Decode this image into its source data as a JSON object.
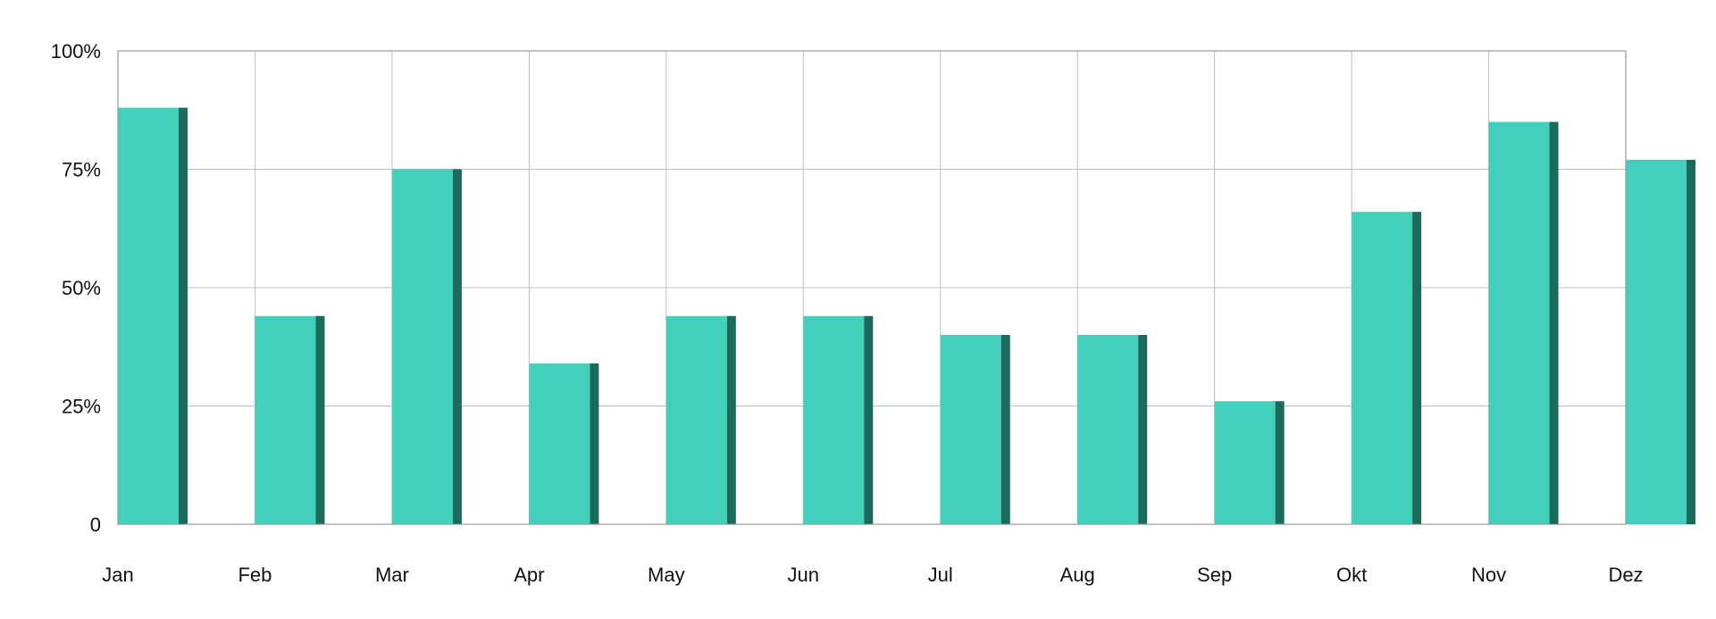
{
  "chart_data": {
    "type": "bar",
    "title": "",
    "xlabel": "",
    "ylabel": "",
    "categories": [
      "Jan",
      "Feb",
      "Mar",
      "Apr",
      "May",
      "Jun",
      "Jul",
      "Aug",
      "Sep",
      "Okt",
      "Nov",
      "Dez"
    ],
    "values": [
      88,
      44,
      75,
      34,
      44,
      44,
      40,
      40,
      26,
      66,
      85,
      77
    ],
    "ylim": [
      0,
      100
    ],
    "yticks": [
      0,
      25,
      50,
      75,
      100
    ],
    "ytick_labels": [
      "0",
      "25%",
      "50%",
      "75%",
      "100%"
    ],
    "grid": true,
    "colors": {
      "bar_face": "#42d0bc",
      "bar_side": "#1a6a5e",
      "grid": "#bdbdbd",
      "frame": "#9a9a9a"
    }
  }
}
